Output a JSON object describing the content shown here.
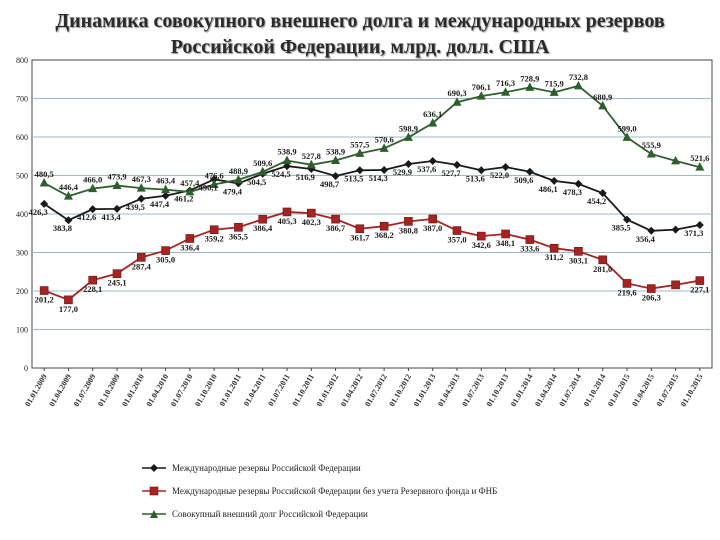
{
  "title_line1": "Динамика совокупного внешнего долга и международных резервов",
  "title_line2": "Российской Федерации, млрд. долл. США",
  "chart_data": {
    "type": "line",
    "ylim": [
      0,
      800
    ],
    "yticks": [
      "0",
      "100",
      "200",
      "300",
      "400",
      "500",
      "600",
      "700",
      "800"
    ],
    "grid": true,
    "legend_position": "bottom",
    "categories": [
      "01.01.2009",
      "01.04.2009",
      "01.07.2009",
      "01.10.2009",
      "01.01.2010",
      "01.04.2010",
      "01.07.2010",
      "01.10.2010",
      "01.01.2011",
      "01.04.2011",
      "01.07.2011",
      "01.10.2011",
      "01.01.2012",
      "01.04.2012",
      "01.07.2012",
      "01.10.2012",
      "01.01.2013",
      "01.04.2013",
      "01.07.2013",
      "01.10.2013",
      "01.01.2014",
      "01.04.2014",
      "01.07.2014",
      "01.10.2014",
      "01.01.2015",
      "01.04.2015",
      "01.07.2015",
      "01.10.2015"
    ],
    "series": [
      {
        "name": "Международные резервы Российской Федерации",
        "color": "#1a1a1a",
        "marker": "diamond",
        "values": [
          426.3,
          383.8,
          412.6,
          413.4,
          439.5,
          447.4,
          461.2,
          490.1,
          479.4,
          504.5,
          524.5,
          516.9,
          498.7,
          513.5,
          514.3,
          529.9,
          537.6,
          527.7,
          513.6,
          522.0,
          509.6,
          486.1,
          478.3,
          454.2,
          385.5,
          356.4,
          359.5,
          371.3
        ],
        "labels": [
          "426,3",
          "383,8",
          "412,6",
          "413,4",
          "439,5",
          "447,4",
          "461,2",
          "490,1",
          "479,4",
          "504,5",
          "524,5",
          "516,9",
          "498,7",
          "513,5",
          "514,3",
          "529,9",
          "537,6",
          "527,7",
          "513,6",
          "522,0",
          "509,6",
          "486,1",
          "478,3",
          "454,2",
          "385,5",
          "356,4",
          "",
          "371,3"
        ]
      },
      {
        "name": "Международные резервы Российской Федерации без учета Резервного фонда и ФНБ",
        "color": "#a52422",
        "marker": "square",
        "values": [
          201.2,
          177.0,
          228.1,
          245.1,
          287.4,
          305.0,
          336.4,
          359.2,
          365.5,
          386.4,
          405.3,
          402.3,
          386.7,
          361.7,
          368.2,
          380.8,
          387.0,
          357.0,
          342.6,
          348.1,
          333.6,
          311.2,
          303.1,
          281.0,
          219.6,
          206.3,
          216.0,
          227.1
        ],
        "labels": [
          "201,2",
          "177,0",
          "228,1",
          "245,1",
          "287,4",
          "305,0",
          "336,4",
          "359,2",
          "365,5",
          "386,4",
          "405,3",
          "402,3",
          "386,7",
          "361,7",
          "368,2",
          "380,8",
          "387,0",
          "357,0",
          "342,6",
          "348,1",
          "333,6",
          "311,2",
          "303,1",
          "281,0",
          "219,6",
          "206,3",
          "",
          "227,1"
        ]
      },
      {
        "name": "Совокупный внешний долг Российской Федерации",
        "color": "#2f5e2d",
        "marker": "triangle",
        "values": [
          480.5,
          446.4,
          466.0,
          473.9,
          467.3,
          463.4,
          457.4,
          476.6,
          488.9,
          509.6,
          538.9,
          527.8,
          538.9,
          557.5,
          570.6,
          598.9,
          636.1,
          690.3,
          706.1,
          716.3,
          728.9,
          715.9,
          732.8,
          680.9,
          599.0,
          555.9,
          538.0,
          521.6
        ],
        "labels": [
          "480,5",
          "446,4",
          "466,0",
          "473,9",
          "467,3",
          "463,4",
          "457,4",
          "476,6",
          "488,9",
          "509,6",
          "538,9",
          "527,8",
          "538,9",
          "557,5",
          "570,6",
          "598,9",
          "636,1",
          "690,3",
          "706,1",
          "716,3",
          "728,9",
          "715,9",
          "732,8",
          "680,9",
          "599,0",
          "555,9",
          "",
          "521,6"
        ]
      }
    ]
  }
}
